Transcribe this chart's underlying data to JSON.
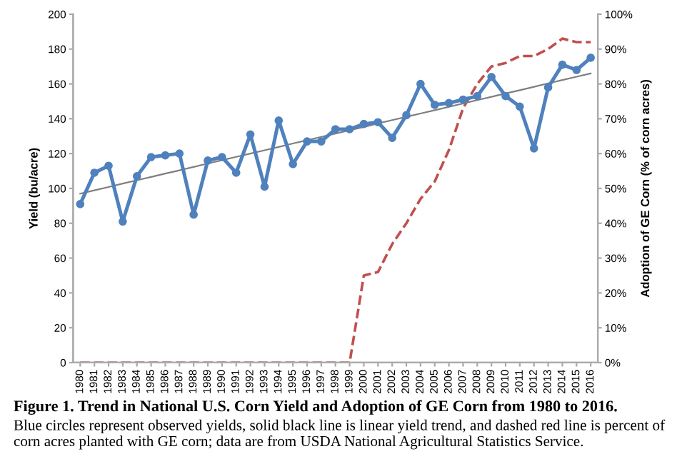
{
  "chart_data": {
    "type": "line",
    "title": "Figure 1. Trend in National U.S. Corn Yield and Adoption of GE Corn from 1980 to 2016.",
    "annotations": [
      "Blue circles represent observed yields, solid black line is linear yield trend, and dashed red line is percent of corn acres planted with GE corn; data are from USDA National Agricultural Statistics Service."
    ],
    "ylabel": "Yield (bu/acre)",
    "y2label": "Adoption of GE Corn (% of corn acres)",
    "categories": [
      "1980",
      "1981",
      "1982",
      "1983",
      "1984",
      "1985",
      "1986",
      "1987",
      "1988",
      "1989",
      "1990",
      "1991",
      "1992",
      "1993",
      "1994",
      "1995",
      "1996",
      "1997",
      "1998",
      "1999",
      "2000",
      "2001",
      "2002",
      "2003",
      "2004",
      "2005",
      "2006",
      "2007",
      "2008",
      "2009",
      "2010",
      "2011",
      "2012",
      "2013",
      "2014",
      "2015",
      "2016"
    ],
    "series": [
      {
        "color": "#c0504d",
        "axis": "y2",
        "line_style": "dashed",
        "marker": "none",
        "values": [
          0,
          0,
          0,
          0,
          0,
          0,
          0,
          0,
          0,
          0,
          0,
          0,
          0,
          0,
          0,
          0,
          0,
          0,
          0,
          0,
          25,
          26,
          34,
          40,
          47,
          52,
          61,
          73,
          80,
          85,
          86,
          88,
          88,
          90,
          93,
          92,
          92
        ]
      },
      {
        "color": "#7f7f7f",
        "type": "line",
        "line_style": "solid",
        "marker": "none",
        "values": [
          97,
          98.9,
          100.8,
          102.8,
          104.7,
          106.6,
          108.5,
          110.4,
          112.3,
          114.3,
          116.2,
          118.1,
          120,
          121.9,
          123.8,
          125.8,
          127.7,
          129.6,
          131.5,
          133.4,
          135.3,
          137.3,
          139.2,
          141.1,
          143,
          144.9,
          146.8,
          148.8,
          150.7,
          152.6,
          154.5,
          156.4,
          158.3,
          160.3,
          162.2,
          164.1,
          166
        ]
      },
      {
        "color": "#4f81bd",
        "axis": "y",
        "line_style": "solid",
        "marker": "circle",
        "values": [
          91,
          109,
          113,
          81,
          107,
          118,
          119,
          120,
          85,
          116,
          118,
          109,
          131,
          101,
          139,
          114,
          127,
          127,
          134,
          134,
          137,
          138,
          129,
          142,
          160,
          148,
          149,
          151,
          153,
          164,
          153,
          147,
          123,
          158,
          171,
          168,
          175
        ]
      }
    ],
    "ylim": [
      0,
      200
    ],
    "yticks": [
      0,
      20,
      40,
      60,
      80,
      100,
      120,
      140,
      160,
      180,
      200
    ],
    "y2lim": [
      0,
      100
    ],
    "y2ticks": [
      {
        "value": 0,
        "label": "0%"
      },
      {
        "value": 10,
        "label": "10%"
      },
      {
        "value": 20,
        "label": "20%"
      },
      {
        "value": 30,
        "label": "30%"
      },
      {
        "value": 40,
        "label": "40%"
      },
      {
        "value": 50,
        "label": "50%"
      },
      {
        "value": 60,
        "label": "60%"
      },
      {
        "value": 70,
        "label": "70%"
      },
      {
        "value": 80,
        "label": "80%"
      },
      {
        "value": 90,
        "label": "90%"
      },
      {
        "value": 100,
        "label": "100%"
      }
    ],
    "grid": false,
    "legend": false
  }
}
